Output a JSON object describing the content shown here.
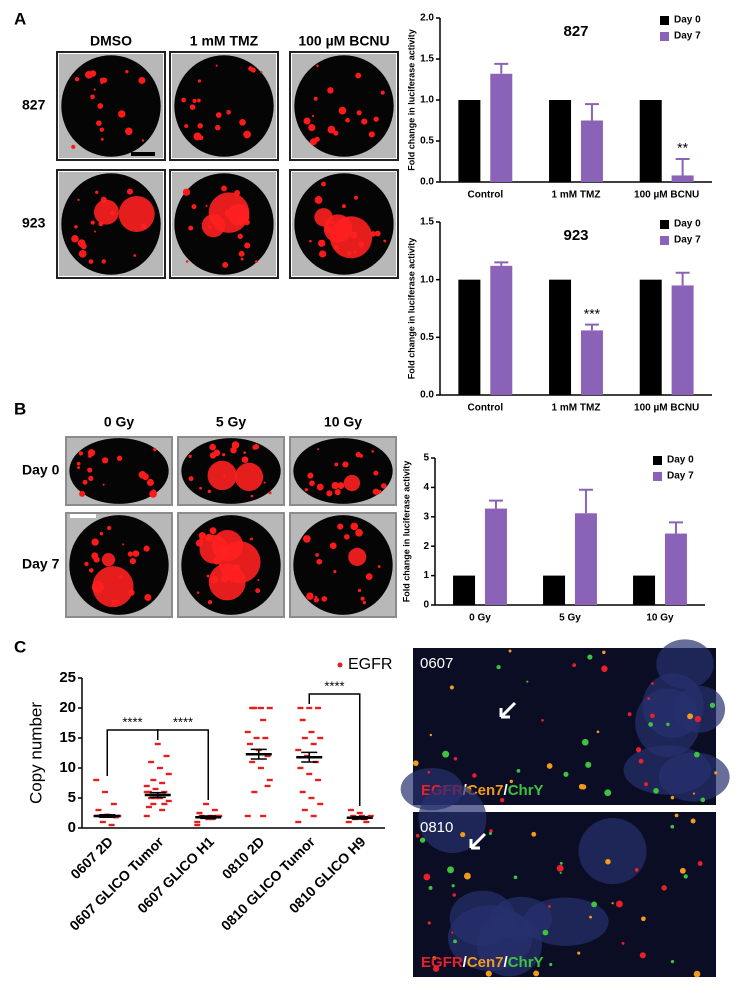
{
  "panels": [
    "A",
    "B",
    "C"
  ],
  "image_grids": [
    {
      "columns": [
        "DMSO",
        "1 mM TMZ",
        "100 µM BCNU"
      ],
      "rows": [
        "827",
        "923"
      ]
    },
    {
      "columns": [
        "0 Gy",
        "5 Gy",
        "10 Gy"
      ],
      "rows": [
        "Day 0",
        "Day 7"
      ]
    }
  ],
  "fish": {
    "samples": [
      "0607",
      "0810"
    ],
    "stain": [
      {
        "text": "EGFR",
        "color": "#e8202a"
      },
      {
        "text": "/",
        "color": "#ffffff"
      },
      {
        "text": "Cen7",
        "color": "#f29a1e"
      },
      {
        "text": "/",
        "color": "#ffffff"
      },
      {
        "text": "ChrY",
        "color": "#3fc23f"
      }
    ]
  },
  "chart_data": [
    {
      "type": "bar",
      "title": "827",
      "y_label": "Fold change in luciferase activity",
      "categories": [
        "Control",
        "1 mM TMZ",
        "100 µM BCNU"
      ],
      "series": [
        {
          "name": "Day 0",
          "color": "#000000",
          "values": [
            1,
            1,
            1
          ]
        },
        {
          "name": "Day 7",
          "color": "#8a63b8",
          "values": [
            1.32,
            0.75,
            0.08
          ],
          "errors": [
            0.12,
            0.2,
            0.2
          ]
        }
      ],
      "significance": [
        null,
        null,
        "**"
      ],
      "ylim": [
        0,
        2
      ],
      "yticks": [
        {
          "value": 0,
          "label": "0.0"
        },
        {
          "value": 0.5,
          "label": "0.5"
        },
        {
          "value": 1,
          "label": "1.0"
        },
        {
          "value": 1.5,
          "label": "1.5"
        },
        {
          "value": 2,
          "label": "2.0"
        }
      ]
    },
    {
      "type": "bar",
      "title": "923",
      "y_label": "Fold change in luciferase activity",
      "categories": [
        "Control",
        "1 mM TMZ",
        "100 µM BCNU"
      ],
      "series": [
        {
          "name": "Day 0",
          "color": "#000000",
          "values": [
            1,
            1,
            1
          ]
        },
        {
          "name": "Day 7",
          "color": "#8a63b8",
          "values": [
            1.12,
            0.56,
            0.95
          ],
          "errors": [
            0.03,
            0.05,
            0.11
          ]
        }
      ],
      "significance": [
        null,
        "***",
        null
      ],
      "ylim": [
        0,
        1.5
      ],
      "yticks": [
        {
          "value": 0,
          "label": "0.0"
        },
        {
          "value": 0.5,
          "label": "0.5"
        },
        {
          "value": 1,
          "label": "1.0"
        },
        {
          "value": 1.5,
          "label": "1.5"
        }
      ]
    },
    {
      "type": "bar",
      "y_label": "Fold change in luciferase activity",
      "categories": [
        "0 Gy",
        "5 Gy",
        "10 Gy"
      ],
      "series": [
        {
          "name": "Day 0",
          "color": "#000000",
          "values": [
            1,
            1,
            1
          ]
        },
        {
          "name": "Day 7",
          "color": "#8a63b8",
          "values": [
            3.28,
            3.12,
            2.43
          ],
          "errors": [
            0.27,
            0.8,
            0.38
          ]
        }
      ],
      "ylim": [
        0,
        5
      ],
      "yticks": [
        0,
        1,
        2,
        3,
        4,
        5
      ]
    },
    {
      "type": "dot",
      "y_label": "Copy number",
      "categories": [
        "0607 2D",
        "0607 GLICO Tumor",
        "0607 GLICO H1",
        "0810 2D",
        "0810 GLICO Tumor",
        "0810 GLICO H9"
      ],
      "series": [
        {
          "name": "EGFR",
          "color": "#e02020",
          "points": [
            [
              2,
              2,
              2,
              2,
              2,
              2,
              1.8,
              2.2,
              3,
              4,
              6,
              8,
              0.5,
              1
            ],
            [
              2,
              3,
              4,
              4.5,
              5,
              5,
              5.5,
              5.5,
              6,
              6,
              6.5,
              7,
              7.5,
              8,
              9,
              10,
              11,
              12,
              14,
              3.5,
              4,
              5,
              6
            ],
            [
              1,
              1.5,
              1.8,
              2,
              2,
              2,
              2,
              1.5,
              2.5,
              3,
              4,
              0.5
            ],
            [
              2,
              2,
              6,
              8,
              10,
              11,
              12,
              13,
              14,
              15,
              15,
              16,
              18,
              20,
              20,
              20,
              20,
              7
            ],
            [
              1,
              2,
              3,
              4,
              5,
              6,
              8,
              9,
              10,
              11,
              12,
              13,
              14,
              15,
              15,
              16,
              18,
              20,
              20,
              20
            ],
            [
              1,
              1.5,
              1.5,
              2,
              2,
              2,
              1.8,
              2.5,
              3,
              1
            ]
          ],
          "mean": [
            2,
            5.5,
            1.8,
            12.3,
            11.8,
            1.7
          ],
          "sem": [
            0.2,
            0.4,
            0.2,
            0.8,
            0.8,
            0.2
          ]
        }
      ],
      "comparisons": [
        {
          "from": "0607 2D",
          "to": "0607 GLICO Tumor",
          "label": "****"
        },
        {
          "from": "0607 GLICO Tumor",
          "to": "0607 GLICO H1",
          "label": "****"
        },
        {
          "from": "0810 GLICO Tumor",
          "to": "0810 GLICO H9",
          "label": "****"
        }
      ],
      "ylim": [
        0,
        25
      ],
      "yticks": [
        0,
        5,
        10,
        15,
        20,
        25
      ]
    }
  ]
}
